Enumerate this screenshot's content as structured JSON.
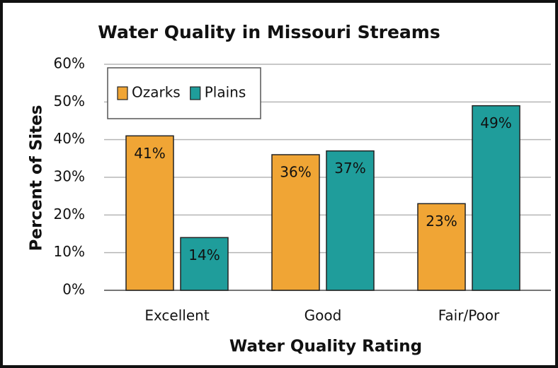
{
  "chart_data": {
    "type": "bar",
    "title": "Water Quality in Missouri Streams",
    "x_label": "Water Quality Rating",
    "y_label": "Percent of Sites",
    "categories": [
      "Excellent",
      "Good",
      "Fair/Poor"
    ],
    "series": [
      {
        "name": "Ozarks",
        "color": "#f0a535",
        "values": [
          41,
          36,
          23
        ],
        "value_labels": [
          "41%",
          "36%",
          "23%"
        ]
      },
      {
        "name": "Plains",
        "color": "#1f9d9b",
        "values": [
          14,
          37,
          49
        ],
        "value_labels": [
          "14%",
          "37%",
          "49%"
        ]
      }
    ],
    "ylim": [
      0,
      60
    ],
    "yticks": [
      {
        "value": 0,
        "label": "0%"
      },
      {
        "value": 10,
        "label": "10%"
      },
      {
        "value": 20,
        "label": "20%"
      },
      {
        "value": 30,
        "label": "30%"
      },
      {
        "value": 40,
        "label": "40%"
      },
      {
        "value": 50,
        "label": "50%"
      },
      {
        "value": 60,
        "label": "60%"
      }
    ],
    "grid": true,
    "legend": "upper left"
  }
}
